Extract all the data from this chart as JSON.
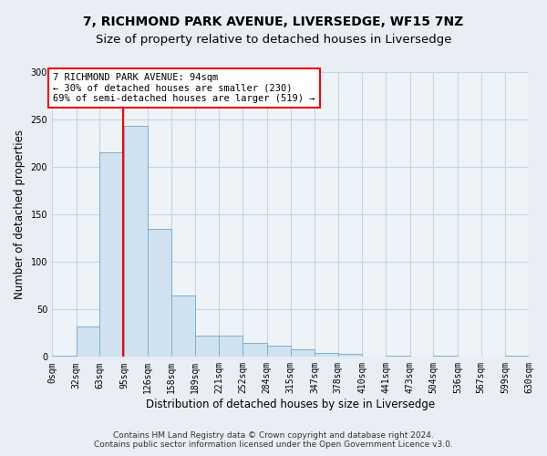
{
  "title1": "7, RICHMOND PARK AVENUE, LIVERSEDGE, WF15 7NZ",
  "title2": "Size of property relative to detached houses in Liversedge",
  "xlabel": "Distribution of detached houses by size in Liversedge",
  "ylabel": "Number of detached properties",
  "bin_edges": [
    0,
    32,
    63,
    95,
    126,
    158,
    189,
    221,
    252,
    284,
    315,
    347,
    378,
    410,
    441,
    473,
    504,
    536,
    567,
    599,
    630
  ],
  "bar_heights": [
    1,
    32,
    215,
    243,
    135,
    65,
    22,
    22,
    15,
    12,
    8,
    4,
    3,
    0,
    1,
    0,
    1,
    0,
    0,
    1
  ],
  "bar_color": "#d0e2f0",
  "bar_edgecolor": "#7aafd4",
  "red_line_x": 94,
  "annotation_line1": "7 RICHMOND PARK AVENUE: 94sqm",
  "annotation_line2": "← 30% of detached houses are smaller (230)",
  "annotation_line3": "69% of semi-detached houses are larger (519) →",
  "annotation_box_color": "white",
  "annotation_box_edgecolor": "red",
  "ylim": [
    0,
    300
  ],
  "yticks": [
    0,
    50,
    100,
    150,
    200,
    250,
    300
  ],
  "tick_labels": [
    "0sqm",
    "32sqm",
    "63sqm",
    "95sqm",
    "126sqm",
    "158sqm",
    "189sqm",
    "221sqm",
    "252sqm",
    "284sqm",
    "315sqm",
    "347sqm",
    "378sqm",
    "410sqm",
    "441sqm",
    "473sqm",
    "504sqm",
    "536sqm",
    "567sqm",
    "599sqm",
    "630sqm"
  ],
  "footer1": "Contains HM Land Registry data © Crown copyright and database right 2024.",
  "footer2": "Contains public sector information licensed under the Open Government Licence v3.0.",
  "title1_fontsize": 10,
  "title2_fontsize": 9.5,
  "xlabel_fontsize": 8.5,
  "ylabel_fontsize": 8.5,
  "tick_fontsize": 7,
  "footer_fontsize": 6.5,
  "annotation_fontsize": 7.5,
  "bg_color": "#e8eef4",
  "plot_bg_color": "#eef3f8",
  "grid_color": "#c8d4e0"
}
